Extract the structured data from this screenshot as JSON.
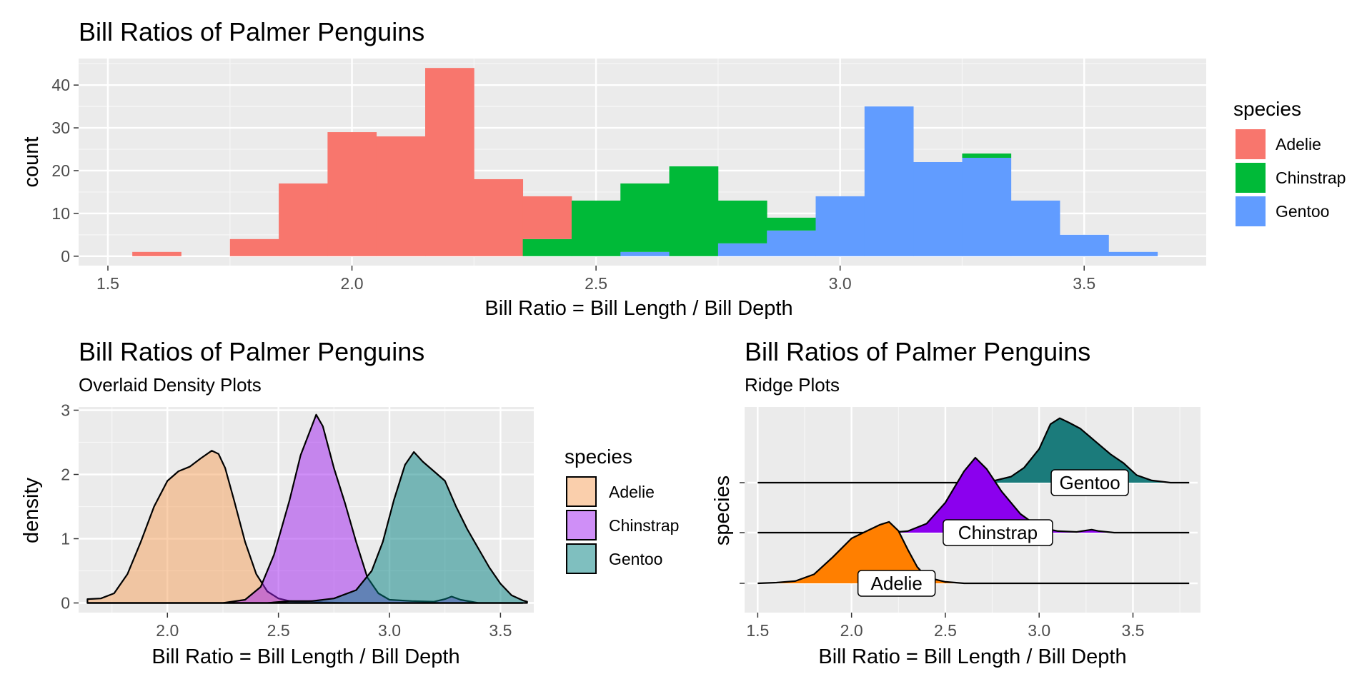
{
  "chart_data": [
    {
      "type": "histogram",
      "title": "Bill Ratios of Palmer Penguins",
      "xlabel": "Bill Ratio = Bill Length / Bill Depth",
      "ylabel": "count",
      "xlim": [
        1.44,
        3.75
      ],
      "ylim": [
        -2.2,
        46.2
      ],
      "xticks": [
        "1.5",
        "2.0",
        "2.5",
        "3.0",
        "3.5"
      ],
      "yticks": [
        "0",
        "10",
        "20",
        "30",
        "40"
      ],
      "grid": true,
      "stacked": true,
      "legend": {
        "title": "species",
        "position": "right"
      },
      "bin_width": 0.1,
      "bin_centers": [
        1.6,
        1.7,
        1.8,
        1.9,
        2.0,
        2.1,
        2.2,
        2.3,
        2.4,
        2.5,
        2.6,
        2.7,
        2.8,
        2.9,
        3.0,
        3.1,
        3.2,
        3.3,
        3.4,
        3.5,
        3.6
      ],
      "series": [
        {
          "name": "Adelie",
          "color": "#F8766D",
          "values": [
            1,
            0,
            4,
            17,
            29,
            28,
            44,
            18,
            10,
            0,
            0,
            0,
            0,
            0,
            0,
            0,
            0,
            0,
            0,
            0,
            0
          ]
        },
        {
          "name": "Chinstrap",
          "color": "#00BA38",
          "values": [
            0,
            0,
            0,
            0,
            0,
            0,
            0,
            0,
            4,
            13,
            16,
            21,
            10,
            3,
            0,
            0,
            0,
            1,
            0,
            0,
            0
          ]
        },
        {
          "name": "Gentoo",
          "color": "#619CFF",
          "values": [
            0,
            0,
            0,
            0,
            0,
            0,
            0,
            0,
            0,
            0,
            1,
            0,
            3,
            6,
            14,
            35,
            22,
            23,
            13,
            5,
            1
          ]
        }
      ]
    },
    {
      "type": "area",
      "title": "Bill Ratios of Palmer Penguins",
      "subtitle": "Overlaid Density Plots",
      "xlabel": "Bill Ratio = Bill Length / Bill Depth",
      "ylabel": "density",
      "xlim": [
        1.6,
        3.65
      ],
      "ylim": [
        -0.15,
        3.05
      ],
      "xticks": [
        "2.0",
        "2.5",
        "3.0",
        "3.5"
      ],
      "yticks": [
        "0",
        "1",
        "2",
        "3"
      ],
      "grid": true,
      "legend": {
        "title": "species",
        "position": "right"
      },
      "series": [
        {
          "name": "Adelie",
          "color": "#F5A05A",
          "points": [
            [
              1.64,
              0.06
            ],
            [
              1.7,
              0.07
            ],
            [
              1.76,
              0.15
            ],
            [
              1.82,
              0.45
            ],
            [
              1.88,
              0.95
            ],
            [
              1.94,
              1.5
            ],
            [
              2.0,
              1.9
            ],
            [
              2.05,
              2.05
            ],
            [
              2.1,
              2.12
            ],
            [
              2.15,
              2.25
            ],
            [
              2.2,
              2.37
            ],
            [
              2.23,
              2.32
            ],
            [
              2.26,
              2.1
            ],
            [
              2.3,
              1.6
            ],
            [
              2.35,
              0.95
            ],
            [
              2.4,
              0.45
            ],
            [
              2.45,
              0.18
            ],
            [
              2.5,
              0.07
            ],
            [
              2.55,
              0.03
            ],
            [
              2.6,
              0.02
            ],
            [
              2.65,
              0.03
            ],
            [
              2.7,
              0.01
            ],
            [
              2.8,
              0.0
            ],
            [
              3.6,
              0.0
            ]
          ]
        },
        {
          "name": "Chinstrap",
          "color": "#A020F0",
          "points": [
            [
              1.64,
              0.0
            ],
            [
              2.25,
              0.0
            ],
            [
              2.35,
              0.05
            ],
            [
              2.42,
              0.25
            ],
            [
              2.48,
              0.75
            ],
            [
              2.55,
              1.6
            ],
            [
              2.6,
              2.3
            ],
            [
              2.65,
              2.75
            ],
            [
              2.67,
              2.93
            ],
            [
              2.7,
              2.75
            ],
            [
              2.75,
              2.1
            ],
            [
              2.8,
              1.55
            ],
            [
              2.85,
              0.95
            ],
            [
              2.9,
              0.4
            ],
            [
              2.95,
              0.15
            ],
            [
              3.0,
              0.05
            ],
            [
              3.1,
              0.03
            ],
            [
              3.2,
              0.02
            ],
            [
              3.25,
              0.06
            ],
            [
              3.28,
              0.1
            ],
            [
              3.32,
              0.05
            ],
            [
              3.4,
              0.0
            ],
            [
              3.6,
              0.0
            ]
          ]
        },
        {
          "name": "Gentoo",
          "color": "#008080",
          "points": [
            [
              1.64,
              0.0
            ],
            [
              2.45,
              0.0
            ],
            [
              2.55,
              0.03
            ],
            [
              2.65,
              0.03
            ],
            [
              2.75,
              0.07
            ],
            [
              2.85,
              0.2
            ],
            [
              2.92,
              0.5
            ],
            [
              2.97,
              0.95
            ],
            [
              3.02,
              1.6
            ],
            [
              3.07,
              2.15
            ],
            [
              3.11,
              2.35
            ],
            [
              3.15,
              2.2
            ],
            [
              3.2,
              2.05
            ],
            [
              3.25,
              1.9
            ],
            [
              3.3,
              1.5
            ],
            [
              3.35,
              1.15
            ],
            [
              3.4,
              0.85
            ],
            [
              3.45,
              0.55
            ],
            [
              3.5,
              0.3
            ],
            [
              3.55,
              0.12
            ],
            [
              3.6,
              0.04
            ],
            [
              3.62,
              0.02
            ]
          ]
        }
      ]
    },
    {
      "type": "ridgeline",
      "title": "Bill Ratios of Palmer Penguins",
      "subtitle": "Ridge Plots",
      "xlabel": "Bill Ratio = Bill Length / Bill Depth",
      "ylabel": "species",
      "xlim": [
        1.43,
        3.86
      ],
      "xticks": [
        "1.5",
        "2.0",
        "2.5",
        "3.0",
        "3.5"
      ],
      "grid": true,
      "series": [
        {
          "name": "Adelie",
          "label": "Adelie",
          "color": "#FF7F00",
          "points": [
            [
              1.5,
              0.0
            ],
            [
              1.6,
              0.01
            ],
            [
              1.7,
              0.03
            ],
            [
              1.8,
              0.12
            ],
            [
              1.9,
              0.35
            ],
            [
              2.0,
              0.6
            ],
            [
              2.1,
              0.72
            ],
            [
              2.15,
              0.78
            ],
            [
              2.2,
              0.82
            ],
            [
              2.25,
              0.7
            ],
            [
              2.3,
              0.45
            ],
            [
              2.35,
              0.22
            ],
            [
              2.4,
              0.08
            ],
            [
              2.5,
              0.02
            ],
            [
              2.6,
              0.0
            ],
            [
              3.8,
              0.0
            ]
          ]
        },
        {
          "name": "Chinstrap",
          "label": "Chinstrap",
          "color": "#8B00EE",
          "points": [
            [
              1.5,
              0.0
            ],
            [
              2.2,
              0.0
            ],
            [
              2.3,
              0.02
            ],
            [
              2.4,
              0.12
            ],
            [
              2.5,
              0.4
            ],
            [
              2.6,
              0.82
            ],
            [
              2.66,
              1.0
            ],
            [
              2.72,
              0.85
            ],
            [
              2.8,
              0.55
            ],
            [
              2.9,
              0.25
            ],
            [
              3.0,
              0.07
            ],
            [
              3.1,
              0.02
            ],
            [
              3.2,
              0.01
            ],
            [
              3.25,
              0.03
            ],
            [
              3.28,
              0.04
            ],
            [
              3.32,
              0.02
            ],
            [
              3.4,
              0.0
            ],
            [
              3.8,
              0.0
            ]
          ]
        },
        {
          "name": "Gentoo",
          "label": "Gentoo",
          "color": "#1B7B7B",
          "points": [
            [
              1.5,
              0.0
            ],
            [
              2.6,
              0.0
            ],
            [
              2.75,
              0.02
            ],
            [
              2.85,
              0.08
            ],
            [
              2.92,
              0.2
            ],
            [
              3.0,
              0.45
            ],
            [
              3.06,
              0.78
            ],
            [
              3.11,
              0.86
            ],
            [
              3.16,
              0.8
            ],
            [
              3.22,
              0.72
            ],
            [
              3.3,
              0.55
            ],
            [
              3.38,
              0.38
            ],
            [
              3.45,
              0.26
            ],
            [
              3.52,
              0.1
            ],
            [
              3.6,
              0.03
            ],
            [
              3.7,
              0.0
            ],
            [
              3.8,
              0.0
            ]
          ]
        }
      ]
    }
  ]
}
